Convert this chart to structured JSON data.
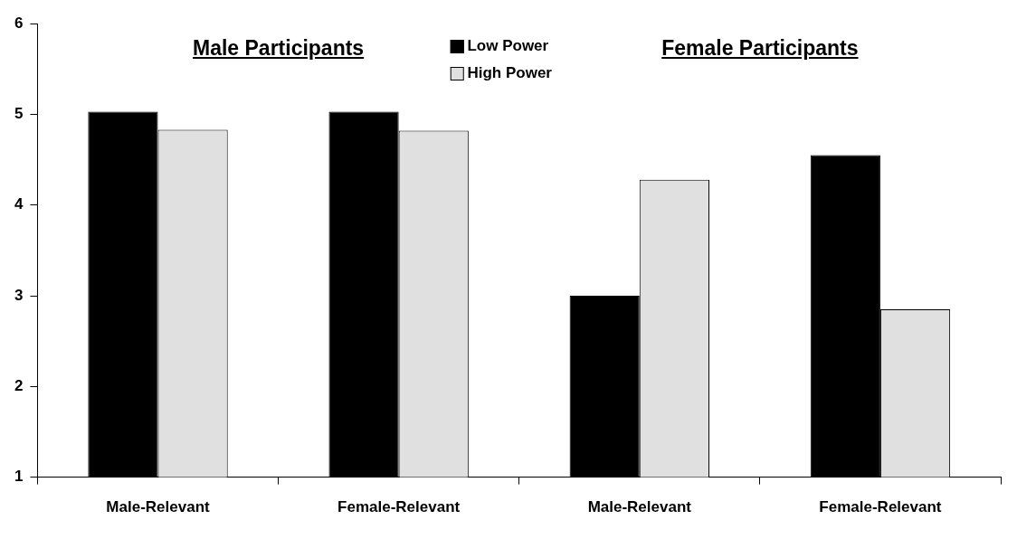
{
  "chart_data": {
    "type": "bar",
    "categories": [
      "Male-Relevant",
      "Female-Relevant",
      "Male-Relevant",
      "Female-Relevant"
    ],
    "series": [
      {
        "name": "Low Power",
        "color": "#000000",
        "values": [
          5.03,
          5.03,
          3.0,
          4.55
        ]
      },
      {
        "name": "High Power",
        "color": "#e0e0e0",
        "values": [
          4.83,
          4.82,
          4.28,
          2.85
        ]
      }
    ],
    "ylim": [
      1,
      6
    ],
    "yticks": [
      1,
      2,
      3,
      4,
      5,
      6
    ],
    "grid": false,
    "legend": "top",
    "annotations": [
      "Male Participants",
      "Female Participants"
    ]
  }
}
